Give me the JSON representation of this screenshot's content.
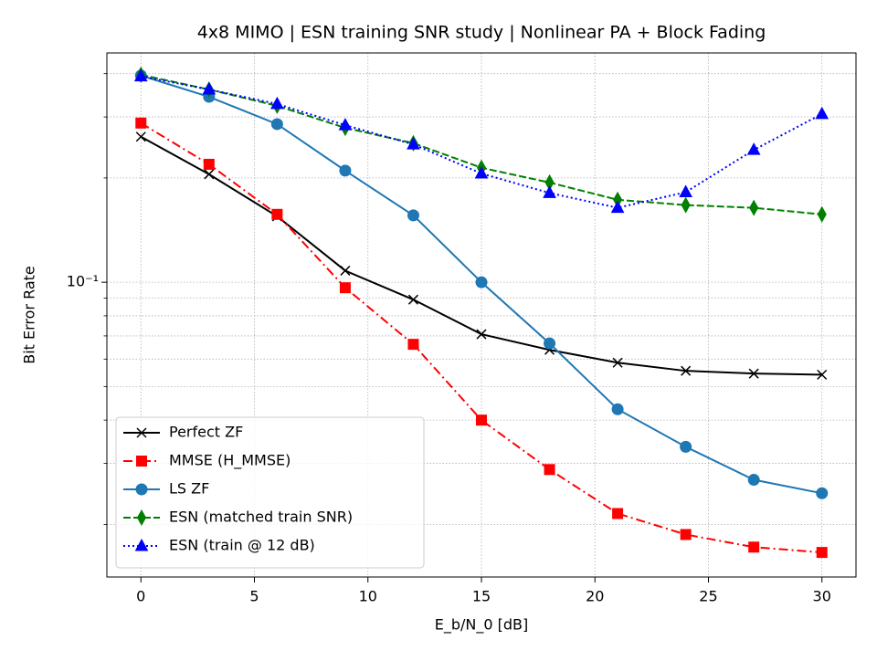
{
  "chart_data": {
    "type": "line",
    "title": "4x8 MIMO | ESN training SNR study | Nonlinear PA + Block Fading",
    "x_label": "E_b/N_0 [dB]",
    "y_label": "Bit Error Rate",
    "x": [
      0,
      3,
      6,
      9,
      12,
      15,
      18,
      21,
      24,
      27,
      30
    ],
    "series": [
      {
        "name": "Perfect ZF",
        "color": "#000000",
        "marker": "x",
        "linestyle": "solid",
        "values": [
          0.263,
          0.205,
          0.155,
          0.108,
          0.0891,
          0.0708,
          0.0638,
          0.0586,
          0.0555,
          0.0545,
          0.0541
        ]
      },
      {
        "name": "MMSE (H_MMSE)",
        "color": "#ff0000",
        "marker": "square",
        "linestyle": "dashdot",
        "values": [
          0.288,
          0.219,
          0.157,
          0.0964,
          0.0662,
          0.04,
          0.0288,
          0.0215,
          0.0187,
          0.0172,
          0.0166
        ]
      },
      {
        "name": "LS ZF",
        "color": "#1f77b4",
        "marker": "circle",
        "linestyle": "solid",
        "values": [
          0.395,
          0.343,
          0.286,
          0.21,
          0.156,
          0.1,
          0.0666,
          0.043,
          0.0335,
          0.0269,
          0.0246
        ]
      },
      {
        "name": "ESN (matched train SNR)",
        "color": "#008000",
        "marker": "thin_diamond",
        "linestyle": "dashed",
        "values": [
          0.397,
          0.36,
          0.323,
          0.279,
          0.252,
          0.214,
          0.194,
          0.173,
          0.167,
          0.164,
          0.157
        ]
      },
      {
        "name": "ESN (train @ 12 dB)",
        "color": "#0000ff",
        "marker": "triangle",
        "linestyle": "dotted",
        "values": [
          0.393,
          0.36,
          0.327,
          0.284,
          0.25,
          0.206,
          0.181,
          0.164,
          0.182,
          0.241,
          0.306
        ]
      }
    ],
    "xlim": [
      -1.5,
      31.5
    ],
    "xticks": [
      0,
      5,
      10,
      15,
      20,
      25,
      30
    ],
    "ylim": [
      0.0141,
      0.459
    ],
    "log_y": true,
    "yticks": [
      {
        "value": 0.1,
        "label": "10⁻¹"
      }
    ],
    "yminorticks": [
      0.02,
      0.03,
      0.04,
      0.05,
      0.06,
      0.07,
      0.08,
      0.09,
      0.2,
      0.3,
      0.4
    ],
    "grid": true,
    "legend": "lower left"
  }
}
